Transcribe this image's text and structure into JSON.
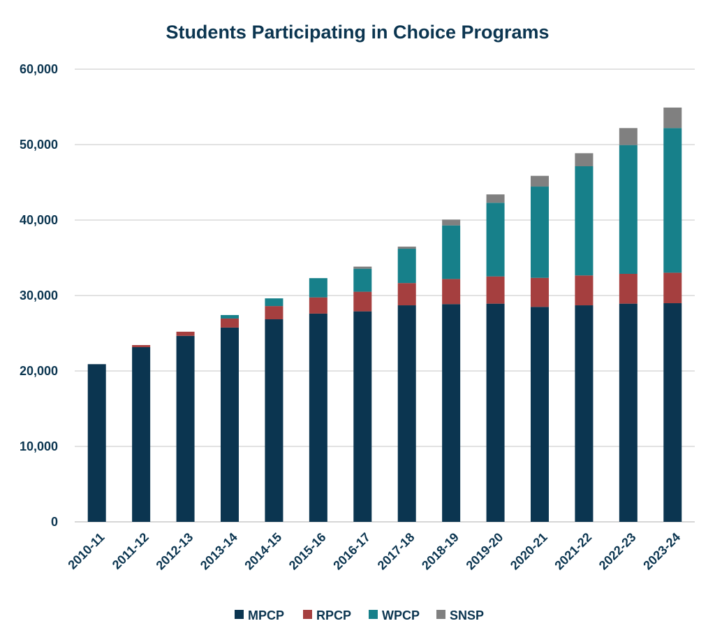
{
  "chart_data": {
    "type": "bar",
    "stacked": true,
    "title": "Students Participating in Choice Programs",
    "xlabel": "",
    "ylabel": "",
    "ylim": [
      0,
      60000
    ],
    "yticks": [
      "0",
      "10,000",
      "20,000",
      "30,000",
      "40,000",
      "50,000",
      "60,000"
    ],
    "ytick_values": [
      0,
      10000,
      20000,
      30000,
      40000,
      50000,
      60000
    ],
    "grid": true,
    "legend_position": "bottom",
    "categories": [
      "2010-11",
      "2011-12",
      "2012-13",
      "2013-14",
      "2014-15",
      "2015-16",
      "2016-17",
      "2017-18",
      "2018-19",
      "2019-20",
      "2020-21",
      "2021-22",
      "2022-23",
      "2023-24"
    ],
    "series": [
      {
        "name": "MPCP",
        "color": "#0b3550",
        "values": [
          20900,
          23150,
          24650,
          25750,
          26850,
          27600,
          27900,
          28700,
          28860,
          28920,
          28490,
          28700,
          28920,
          28980
        ]
      },
      {
        "name": "RPCP",
        "color": "#a53f3f",
        "values": [
          0,
          280,
          550,
          1200,
          1750,
          2150,
          2600,
          2950,
          3330,
          3610,
          3850,
          3960,
          3950,
          4040
        ]
      },
      {
        "name": "WPCP",
        "color": "#17808a",
        "values": [
          0,
          0,
          0,
          460,
          1020,
          2550,
          3050,
          4550,
          7100,
          9760,
          12100,
          14470,
          17070,
          19170
        ]
      },
      {
        "name": "SNSP",
        "color": "#808080",
        "values": [
          0,
          0,
          0,
          0,
          0,
          0,
          280,
          280,
          770,
          1110,
          1420,
          1730,
          2250,
          2720
        ]
      }
    ]
  }
}
